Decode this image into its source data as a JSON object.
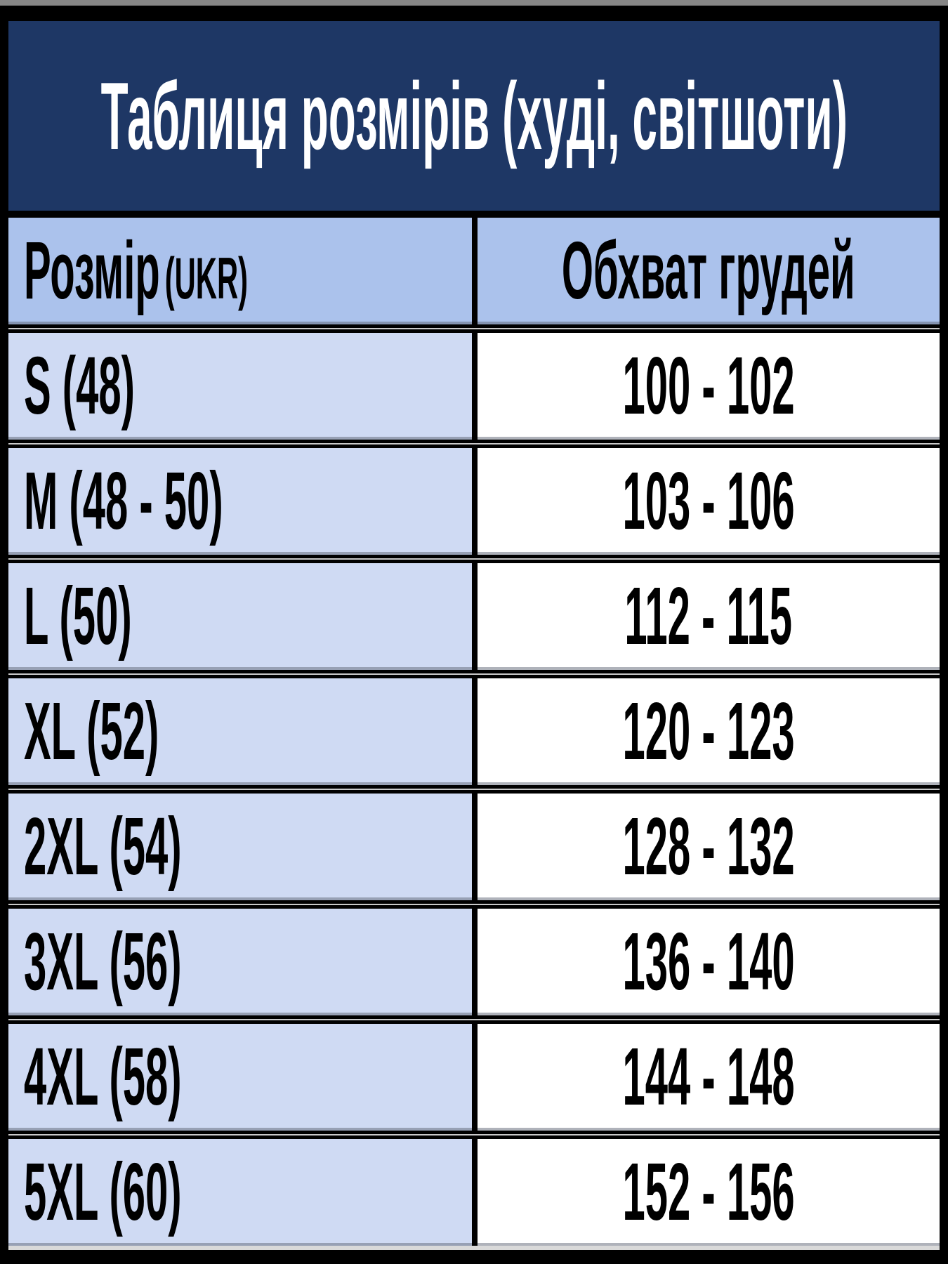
{
  "table": {
    "title": "Таблиця розмірів (худі, світшоти)",
    "columns": {
      "size_label": "Розмір",
      "size_suffix": "(UKR)",
      "chest_label": "Обхват грудей"
    },
    "rows": [
      {
        "size": "S (48)",
        "chest": "100 - 102"
      },
      {
        "size": "M (48 - 50)",
        "chest": "103 - 106"
      },
      {
        "size": "L (50)",
        "chest": "112 - 115"
      },
      {
        "size": "XL (52)",
        "chest": "120 - 123"
      },
      {
        "size": "2XL (54)",
        "chest": "128 - 132"
      },
      {
        "size": "3XL (56)",
        "chest": "136 - 140"
      },
      {
        "size": "4XL (58)",
        "chest": "144 - 148"
      },
      {
        "size": "5XL (60)",
        "chest": "152 - 156"
      }
    ]
  },
  "colors": {
    "navy": "#1E3765",
    "header_blue": "#ABC2EC",
    "row_blue": "#CFDAF3",
    "border_black": "#000000",
    "gap_gray": "#c9c9c9",
    "top_strip_gray": "#868686",
    "bottom_strip_gray": "#d9d9d9",
    "text_white": "#ffffff",
    "text_dark": "#000000"
  },
  "chart_data": {
    "type": "table",
    "title": "Таблиця розмірів (худі, світшоти)",
    "columns": [
      "Розмір (UKR)",
      "Обхват грудей"
    ],
    "rows": [
      [
        "S (48)",
        "100 - 102"
      ],
      [
        "M (48 - 50)",
        "103 - 106"
      ],
      [
        "L (50)",
        "112 - 115"
      ],
      [
        "XL (52)",
        "120 - 123"
      ],
      [
        "2XL (54)",
        "128 - 132"
      ],
      [
        "3XL (56)",
        "136 - 140"
      ],
      [
        "4XL (58)",
        "144 - 148"
      ],
      [
        "5XL (60)",
        "152 - 156"
      ]
    ]
  }
}
